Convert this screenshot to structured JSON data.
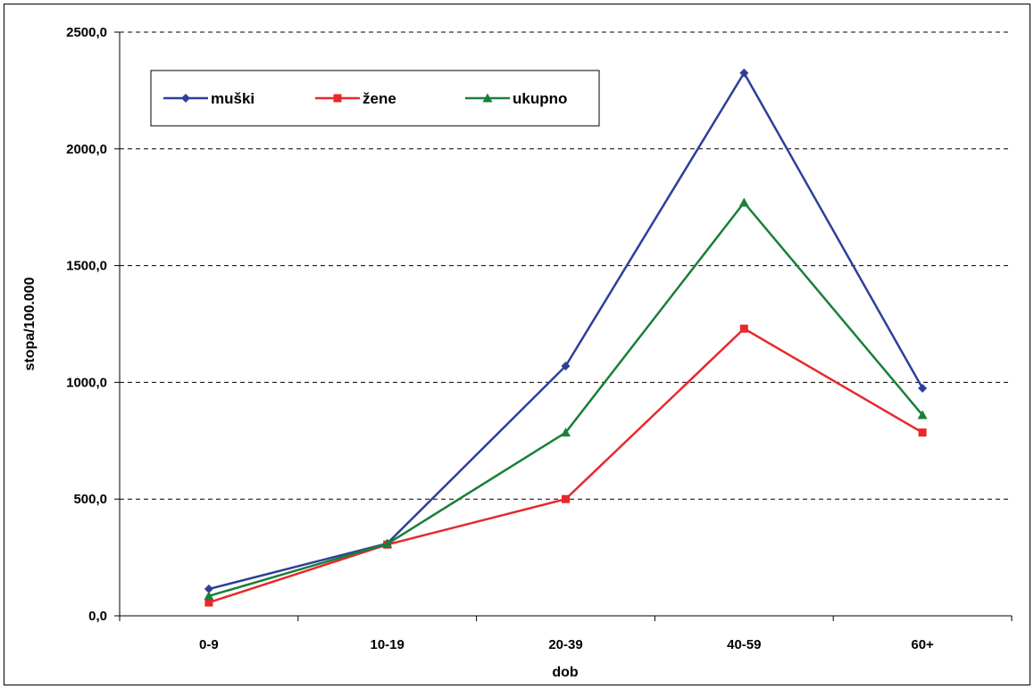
{
  "chart_data": {
    "type": "line",
    "title": "",
    "xlabel": "dob",
    "ylabel": "stopa/100.000",
    "categories": [
      "0-9",
      "10-19",
      "20-39",
      "40-59",
      "60+"
    ],
    "ylim": [
      0,
      2500
    ],
    "yticks": [
      0,
      500,
      1000,
      1500,
      2000,
      2500
    ],
    "ytick_labels": [
      "0,0",
      "500,0",
      "1000,0",
      "1500,0",
      "2000,0",
      "2500,0"
    ],
    "grid": "horizontal dashed",
    "legend_position": "top-left",
    "series": [
      {
        "name": "muški",
        "color": "#2E3F9A",
        "marker": "diamond",
        "values": [
          115,
          310,
          1070,
          2325,
          975
        ]
      },
      {
        "name": "žene",
        "color": "#E8282B",
        "marker": "square",
        "values": [
          57,
          305,
          500,
          1230,
          785
        ]
      },
      {
        "name": "ukupno",
        "color": "#1A7F3A",
        "marker": "triangle",
        "values": [
          85,
          308,
          785,
          1770,
          860
        ]
      }
    ]
  }
}
